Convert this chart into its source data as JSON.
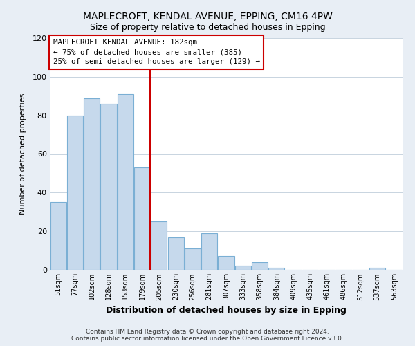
{
  "title_line1": "MAPLECROFT, KENDAL AVENUE, EPPING, CM16 4PW",
  "title_line2": "Size of property relative to detached houses in Epping",
  "xlabel": "Distribution of detached houses by size in Epping",
  "ylabel": "Number of detached properties",
  "categories": [
    "51sqm",
    "77sqm",
    "102sqm",
    "128sqm",
    "153sqm",
    "179sqm",
    "205sqm",
    "230sqm",
    "256sqm",
    "281sqm",
    "307sqm",
    "333sqm",
    "358sqm",
    "384sqm",
    "409sqm",
    "435sqm",
    "461sqm",
    "486sqm",
    "512sqm",
    "537sqm",
    "563sqm"
  ],
  "values": [
    35,
    80,
    89,
    86,
    91,
    53,
    25,
    17,
    11,
    19,
    7,
    2,
    4,
    1,
    0,
    0,
    0,
    0,
    0,
    1,
    0
  ],
  "bar_color": "#c6d9ec",
  "bar_edge_color": "#7aafd4",
  "property_line_index": 5,
  "property_line_color": "#cc0000",
  "ylim": [
    0,
    120
  ],
  "yticks": [
    0,
    20,
    40,
    60,
    80,
    100,
    120
  ],
  "annotation_title": "MAPLECROFT KENDAL AVENUE: 182sqm",
  "annotation_line1": "← 75% of detached houses are smaller (385)",
  "annotation_line2": "25% of semi-detached houses are larger (129) →",
  "footer_line1": "Contains HM Land Registry data © Crown copyright and database right 2024.",
  "footer_line2": "Contains public sector information licensed under the Open Government Licence v3.0.",
  "background_color": "#e8eef5",
  "plot_background": "#ffffff",
  "grid_color": "#c8d4e0"
}
